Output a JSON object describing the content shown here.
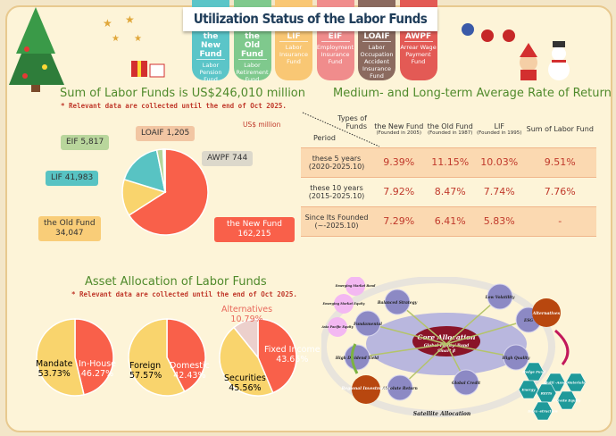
{
  "title": "Utilization Status of the Labor Funds",
  "tabs": [
    {
      "name": "the New Fund",
      "sub": "Labor Pension Fund",
      "color": "#5bc5c8"
    },
    {
      "name": "the Old Fund",
      "sub": "Labor Retirement Fund",
      "color": "#7fc98d"
    },
    {
      "name": "LIF",
      "sub": "Labor Insurance Fund",
      "color": "#f9c774"
    },
    {
      "name": "EIF",
      "sub": "Employment Insurance Fund",
      "color": "#f08c8c"
    },
    {
      "name": "LOAIF",
      "sub": "Labor Occupation Accident Insurance Fund",
      "color": "#8b6a5f"
    },
    {
      "name": "AWPF",
      "sub": "Arrear Wage Payment Fund",
      "color": "#e35a55"
    }
  ],
  "sum": {
    "heading": "Sum of Labor Funds is US$246,010 million",
    "note": "* Relevant data are collected until the end of Oct 2025.",
    "unit": "US$ million"
  },
  "returns": {
    "heading": "Medium- and Long-term Average Rate of Return",
    "corner_top": "Types of Funds",
    "corner_bottom": "Period",
    "columns": [
      {
        "name": "the New Fund",
        "sub": "(Founded in 2005)"
      },
      {
        "name": "the Old Fund",
        "sub": "(Founded in 1987)"
      },
      {
        "name": "LIF",
        "sub": "(Founded in 1995)"
      },
      {
        "name": "Sum of Labor Fund",
        "sub": ""
      }
    ],
    "rows": [
      {
        "period": "these 5 years",
        "range": "(2020-2025.10)",
        "values": [
          "9.39%",
          "11.15%",
          "10.03%",
          "9.51%"
        ]
      },
      {
        "period": "these 10 years",
        "range": "(2015-2025.10)",
        "values": [
          "7.92%",
          "8.47%",
          "7.74%",
          "7.76%"
        ]
      },
      {
        "period": "Since Its Founded",
        "range": "(~-2025.10)",
        "values": [
          "7.29%",
          "6.41%",
          "5.83%",
          "-"
        ]
      }
    ]
  },
  "asset": {
    "heading": "Asset Allocation of Labor Funds",
    "note": "* Relevant data are collected until the end of Oct 2025."
  },
  "chart_data": [
    {
      "type": "pie",
      "title": "Sum of Labor Funds is US$246,010 million",
      "unit": "US$ million",
      "slices": [
        {
          "label": "the New Fund",
          "value": 162215,
          "display": "162,215",
          "color": "#f9604a"
        },
        {
          "label": "the Old Fund",
          "value": 34047,
          "display": "34,047",
          "color": "#f9d46d"
        },
        {
          "label": "LIF",
          "value": 41983,
          "display": "41,983",
          "color": "#58c3c3"
        },
        {
          "label": "EIF",
          "value": 5817,
          "display": "5,817",
          "color": "#b5d59a"
        },
        {
          "label": "LOAIF",
          "value": 1205,
          "display": "1,205",
          "color": "#f0c6a0"
        },
        {
          "label": "AWPF",
          "value": 744,
          "display": "744",
          "color": "#dcd8c8"
        }
      ]
    },
    {
      "type": "pie",
      "slices": [
        {
          "label": "In-House",
          "value": 46.27,
          "display": "46.27%",
          "color": "#f9604a"
        },
        {
          "label": "Mandate",
          "value": 53.73,
          "display": "53.73%",
          "color": "#f9d46d"
        }
      ]
    },
    {
      "type": "pie",
      "slices": [
        {
          "label": "Domestic",
          "value": 42.43,
          "display": "42.43%",
          "color": "#f9604a"
        },
        {
          "label": "Foreign",
          "value": 57.57,
          "display": "57.57%",
          "color": "#f9d46d"
        }
      ]
    },
    {
      "type": "pie",
      "slices": [
        {
          "label": "Fixed Income",
          "value": 43.65,
          "display": "43.65%",
          "color": "#f9604a"
        },
        {
          "label": "Securities",
          "value": 45.56,
          "display": "45.56%",
          "color": "#f9d46d"
        },
        {
          "label": "Alternatives",
          "value": 10.79,
          "display": "10.79%",
          "color": "#ecd0cc"
        }
      ]
    }
  ],
  "diagram": {
    "core": "Core Allocation",
    "core_sub": "Global Equity/ Bond",
    "core_sub2": "Smart β",
    "satellites": [
      "Balanced Strategy",
      "Low Volatility",
      "ESG",
      "High Quality",
      "Global Credit",
      "Absolute Return",
      "High Dividend Yield",
      "Fundamental"
    ],
    "regional": "Regional Investments",
    "regional_items": [
      "Asia Pacific Equity",
      "Emerging Market Equity",
      "Emerging Market Bond"
    ],
    "alternatives": "Alternatives",
    "alt_items": [
      "Hedge Fund",
      "Private Equity",
      "Materials",
      "REITs",
      "Multi -Asset",
      "Infra -structure",
      "Energy"
    ],
    "ring": "Satellite Allocation"
  }
}
